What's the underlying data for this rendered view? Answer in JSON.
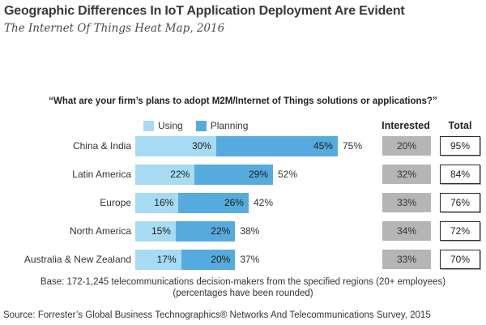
{
  "header": {
    "title": "Geographic Differences In IoT Application Deployment Are Evident",
    "subtitle": "The Internet Of Things Heat Map, 2016"
  },
  "question": "“What are your firm’s plans to adopt M2M/Internet of Things solutions or applications?”",
  "legend": {
    "using_label": "Using",
    "planning_label": "Planning"
  },
  "columns": {
    "interested_label": "Interested",
    "total_label": "Total"
  },
  "chart_data": {
    "type": "bar",
    "subtype": "horizontal-stacked",
    "categories": [
      "China & India",
      "Latin America",
      "Europe",
      "North America",
      "Australia & New Zealand"
    ],
    "series": [
      {
        "name": "Using",
        "values": [
          30,
          22,
          16,
          15,
          17
        ]
      },
      {
        "name": "Planning",
        "values": [
          45,
          29,
          26,
          22,
          20
        ]
      }
    ],
    "bar_sum_labels": [
      "75%",
      "52%",
      "42%",
      "38%",
      "37%"
    ],
    "interested_values": [
      20,
      32,
      33,
      34,
      33
    ],
    "total_values": [
      95,
      84,
      76,
      72,
      70
    ],
    "xlim": [
      0,
      80
    ],
    "grid": false,
    "legend_position": "top",
    "colors": {
      "using": "#a6dbf3",
      "planning": "#56abde",
      "interested_box": "#b5b5b5",
      "text": "#333333"
    }
  },
  "footer": {
    "base_line1": "Base: 172-1,245 telecommunications decision-makers from the specified regions (20+ employees)",
    "base_line2": "(percentages have been rounded)",
    "source": "Source: Forrester’s Global Business Technographics® Networks And Telecommunications Survey, 2015"
  }
}
